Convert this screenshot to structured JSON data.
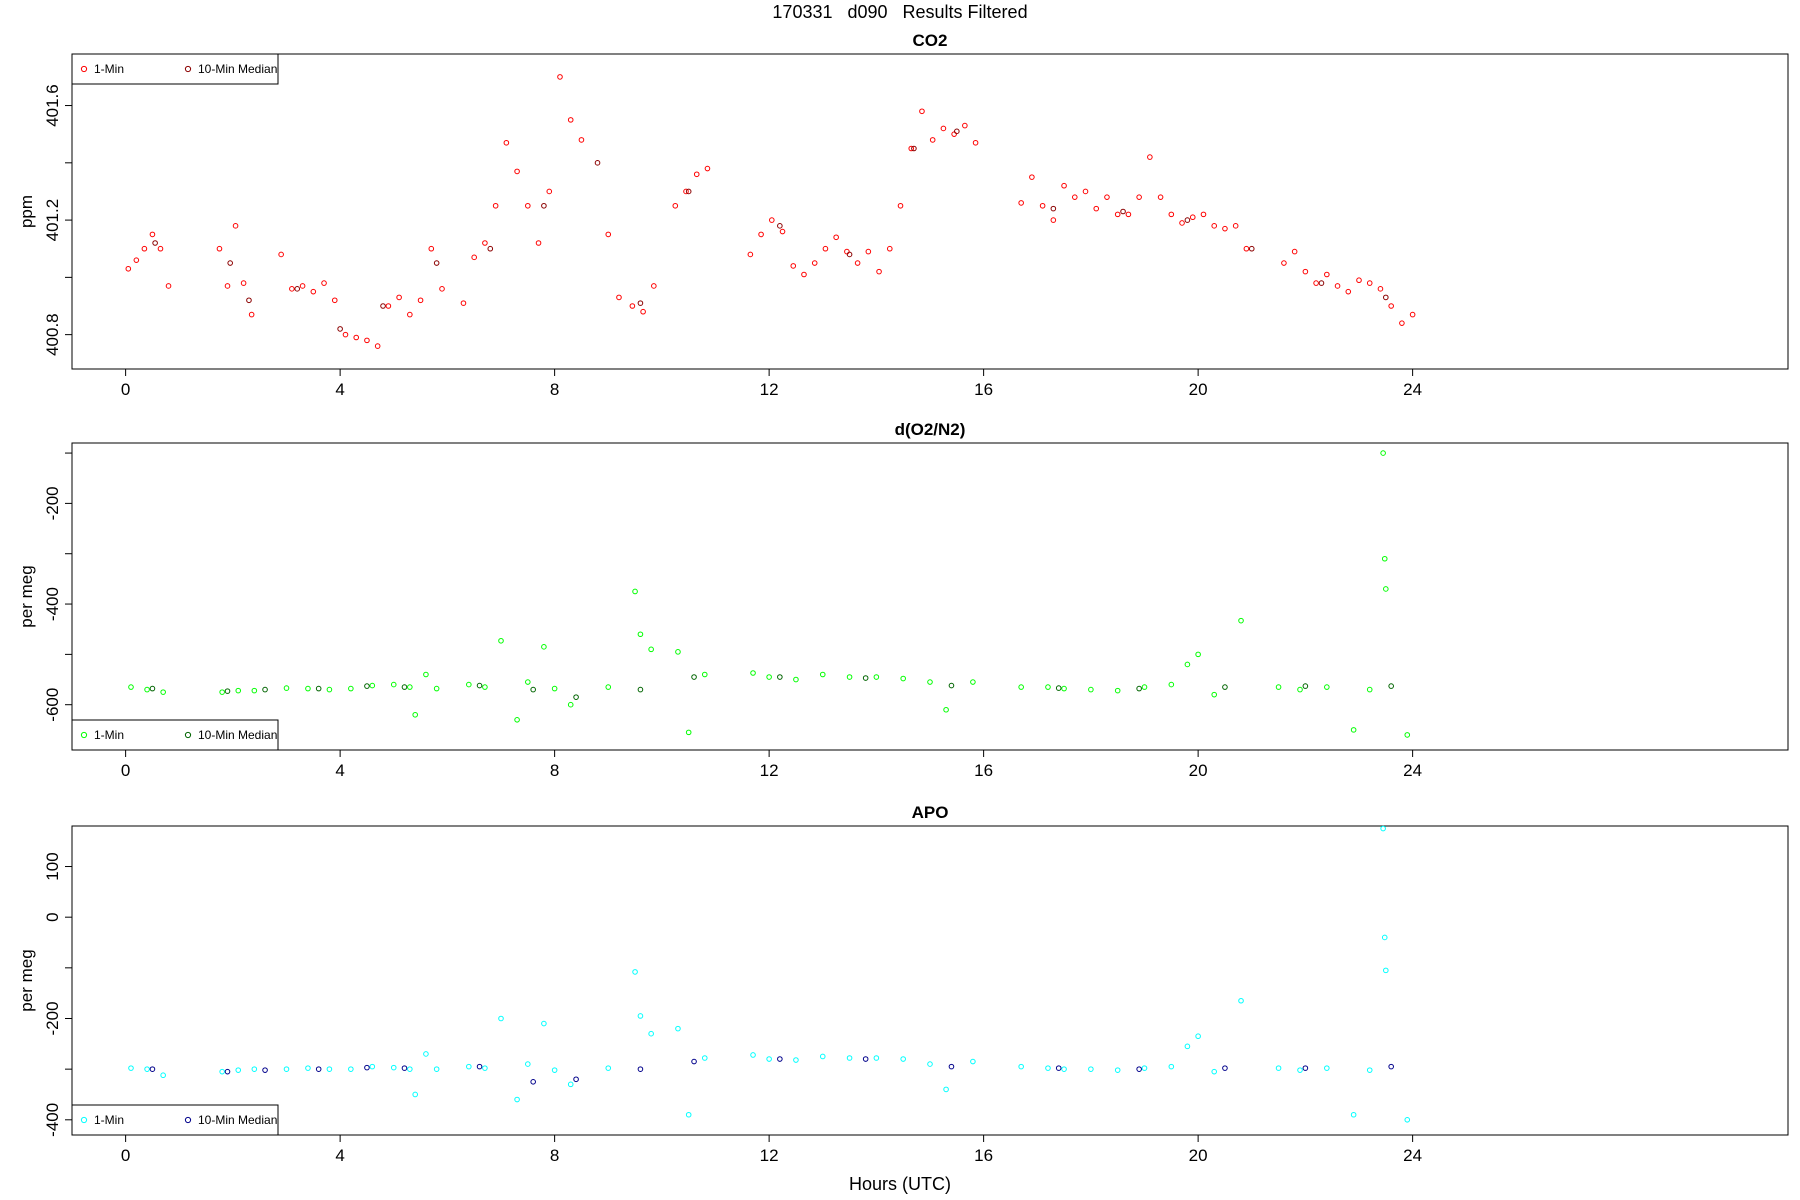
{
  "page_title": "170331   d090   Results Filtered",
  "xlabel": "Hours (UTC)",
  "chart_data": [
    {
      "type": "scatter",
      "title": "CO2",
      "ylabel": "ppm",
      "xlim": [
        -1,
        31
      ],
      "ylim": [
        400.68,
        401.78
      ],
      "xticks": [
        0,
        4,
        8,
        12,
        16,
        20,
        24
      ],
      "yticks": [
        400.8,
        401.2,
        401.6
      ],
      "yminor": [
        400.8,
        401.0,
        401.2,
        401.4,
        401.6
      ],
      "legend_position": "top-left",
      "series": [
        {
          "name": "1-Min",
          "color": "#ff0000",
          "x": [
            0.05,
            0.2,
            0.35,
            0.5,
            0.65,
            0.8,
            1.75,
            1.9,
            2.05,
            2.2,
            2.35,
            2.9,
            3.1,
            3.3,
            3.5,
            3.7,
            3.9,
            4.1,
            4.3,
            4.5,
            4.7,
            4.9,
            5.1,
            5.3,
            5.5,
            5.7,
            5.9,
            6.3,
            6.5,
            6.7,
            6.9,
            7.1,
            7.3,
            7.5,
            7.7,
            7.9,
            8.1,
            8.3,
            8.5,
            9.0,
            9.2,
            9.45,
            9.65,
            9.85,
            10.25,
            10.45,
            10.65,
            10.85,
            11.65,
            11.85,
            12.05,
            12.25,
            12.45,
            12.65,
            12.85,
            13.05,
            13.25,
            13.45,
            13.65,
            13.85,
            14.05,
            14.25,
            14.45,
            14.65,
            14.85,
            15.05,
            15.25,
            15.45,
            15.65,
            15.85,
            16.7,
            16.9,
            17.1,
            17.3,
            17.5,
            17.7,
            17.9,
            18.1,
            18.3,
            18.5,
            18.7,
            18.9,
            19.1,
            19.3,
            19.5,
            19.7,
            19.9,
            20.1,
            20.3,
            20.5,
            20.7,
            20.9,
            21.6,
            21.8,
            22.0,
            22.2,
            22.4,
            22.6,
            22.8,
            23.0,
            23.2,
            23.4,
            23.6,
            23.8,
            24.0
          ],
          "y": [
            401.03,
            401.06,
            401.1,
            401.15,
            401.1,
            400.97,
            401.1,
            400.97,
            401.18,
            400.98,
            400.87,
            401.08,
            400.96,
            400.97,
            400.95,
            400.98,
            400.92,
            400.8,
            400.79,
            400.78,
            400.76,
            400.9,
            400.93,
            400.87,
            400.92,
            401.1,
            400.96,
            400.91,
            401.07,
            401.12,
            401.25,
            401.47,
            401.37,
            401.25,
            401.12,
            401.3,
            401.7,
            401.55,
            401.48,
            401.15,
            400.93,
            400.9,
            400.88,
            400.97,
            401.25,
            401.3,
            401.36,
            401.38,
            401.08,
            401.15,
            401.2,
            401.16,
            401.04,
            401.01,
            401.05,
            401.1,
            401.14,
            401.09,
            401.05,
            401.09,
            401.02,
            401.1,
            401.25,
            401.45,
            401.58,
            401.48,
            401.52,
            401.5,
            401.53,
            401.47,
            401.26,
            401.35,
            401.25,
            401.2,
            401.32,
            401.28,
            401.3,
            401.24,
            401.28,
            401.22,
            401.22,
            401.28,
            401.42,
            401.28,
            401.22,
            401.19,
            401.21,
            401.22,
            401.18,
            401.17,
            401.18,
            401.1,
            401.05,
            401.09,
            401.02,
            400.98,
            401.01,
            400.97,
            400.95,
            400.99,
            400.98,
            400.96,
            400.9,
            400.84,
            400.87
          ]
        },
        {
          "name": "10-Min Median",
          "color": "#8b0000",
          "x": [
            0.55,
            1.95,
            2.3,
            3.2,
            4.0,
            4.8,
            5.8,
            6.8,
            7.8,
            8.8,
            9.6,
            10.5,
            12.2,
            13.5,
            14.7,
            15.5,
            17.3,
            18.6,
            19.8,
            21.0,
            22.3,
            23.5
          ],
          "y": [
            401.12,
            401.05,
            400.92,
            400.96,
            400.82,
            400.9,
            401.05,
            401.1,
            401.25,
            401.4,
            400.91,
            401.3,
            401.18,
            401.08,
            401.45,
            401.51,
            401.24,
            401.23,
            401.2,
            401.1,
            400.98,
            400.93
          ]
        }
      ]
    },
    {
      "type": "scatter",
      "title": "d(O2/N2)",
      "ylabel": "per meg",
      "xlim": [
        -1,
        31
      ],
      "ylim": [
        -690,
        -80
      ],
      "xticks": [
        0,
        4,
        8,
        12,
        16,
        20,
        24
      ],
      "yticks": [
        -600,
        -400,
        -200
      ],
      "yminor": [
        -600,
        -500,
        -400,
        -300,
        -200,
        -100
      ],
      "legend_position": "bottom-left",
      "series": [
        {
          "name": "1-Min",
          "color": "#00ff00",
          "x": [
            0.1,
            0.4,
            0.7,
            1.8,
            2.1,
            2.4,
            3.0,
            3.4,
            3.8,
            4.2,
            4.6,
            5.0,
            5.3,
            5.4,
            5.6,
            5.8,
            6.4,
            6.7,
            7.0,
            7.3,
            7.5,
            7.8,
            8.0,
            8.3,
            9.0,
            9.5,
            9.6,
            9.8,
            10.3,
            10.5,
            10.8,
            11.7,
            12.0,
            12.5,
            13.0,
            13.5,
            14.0,
            14.5,
            15.0,
            15.3,
            15.8,
            16.7,
            17.2,
            17.5,
            18.0,
            18.5,
            19.0,
            19.5,
            19.8,
            20.0,
            20.3,
            20.8,
            21.5,
            21.9,
            22.4,
            22.9,
            23.2,
            23.45,
            23.48,
            23.5,
            23.9
          ],
          "y": [
            -565,
            -570,
            -575,
            -575,
            -572,
            -572,
            -567,
            -568,
            -570,
            -568,
            -562,
            -560,
            -565,
            -620,
            -540,
            -568,
            -560,
            -565,
            -473,
            -630,
            -555,
            -485,
            -568,
            -600,
            -565,
            -375,
            -460,
            -490,
            -495,
            -655,
            -540,
            -537,
            -545,
            -550,
            -540,
            -545,
            -545,
            -548,
            -555,
            -610,
            -555,
            -565,
            -565,
            -568,
            -570,
            -572,
            -565,
            -560,
            -520,
            -500,
            -580,
            -433,
            -565,
            -570,
            -565,
            -650,
            -570,
            -100,
            -310,
            -370,
            -660
          ]
        },
        {
          "name": "10-Min Median",
          "color": "#006400",
          "x": [
            0.5,
            1.9,
            2.6,
            3.6,
            4.5,
            5.2,
            6.6,
            7.6,
            8.4,
            9.6,
            10.6,
            12.2,
            13.8,
            15.4,
            17.4,
            18.9,
            20.5,
            22.0,
            23.6
          ],
          "y": [
            -568,
            -573,
            -570,
            -568,
            -563,
            -565,
            -562,
            -570,
            -585,
            -570,
            -545,
            -545,
            -547,
            -562,
            -567,
            -568,
            -565,
            -563,
            -563
          ]
        }
      ]
    },
    {
      "type": "scatter",
      "title": "APO",
      "ylabel": "per meg",
      "xlim": [
        -1,
        31
      ],
      "ylim": [
        -430,
        180
      ],
      "xticks": [
        0,
        4,
        8,
        12,
        16,
        20,
        24
      ],
      "yticks": [
        -400,
        -200,
        0,
        100
      ],
      "yminor": [
        -400,
        -300,
        -200,
        -100,
        0,
        100
      ],
      "legend_position": "bottom-left",
      "series": [
        {
          "name": "1-Min",
          "color": "#00ffff",
          "x": [
            0.1,
            0.4,
            0.7,
            1.8,
            2.1,
            2.4,
            3.0,
            3.4,
            3.8,
            4.2,
            4.6,
            5.0,
            5.3,
            5.4,
            5.6,
            5.8,
            6.4,
            6.7,
            7.0,
            7.3,
            7.5,
            7.8,
            8.0,
            8.3,
            9.0,
            9.5,
            9.6,
            9.8,
            10.3,
            10.5,
            10.8,
            11.7,
            12.0,
            12.5,
            13.0,
            13.5,
            14.0,
            14.5,
            15.0,
            15.3,
            15.8,
            16.7,
            17.2,
            17.5,
            18.0,
            18.5,
            19.0,
            19.5,
            19.8,
            20.0,
            20.3,
            20.8,
            21.5,
            21.9,
            22.4,
            22.9,
            23.2,
            23.45,
            23.48,
            23.5,
            23.9
          ],
          "y": [
            -298,
            -300,
            -312,
            -305,
            -302,
            -300,
            -300,
            -298,
            -300,
            -300,
            -295,
            -297,
            -300,
            -350,
            -270,
            -300,
            -295,
            -298,
            -200,
            -360,
            -290,
            -210,
            -302,
            -330,
            -298,
            -108,
            -195,
            -230,
            -220,
            -390,
            -278,
            -272,
            -280,
            -282,
            -275,
            -278,
            -278,
            -280,
            -290,
            -340,
            -285,
            -295,
            -298,
            -300,
            -300,
            -302,
            -298,
            -295,
            -255,
            -235,
            -305,
            -165,
            -298,
            -302,
            -298,
            -390,
            -302,
            175,
            -40,
            -105,
            -400
          ]
        },
        {
          "name": "10-Min Median",
          "color": "#00008b",
          "x": [
            0.5,
            1.9,
            2.6,
            3.6,
            4.5,
            5.2,
            6.6,
            7.6,
            8.4,
            9.6,
            10.6,
            12.2,
            13.8,
            15.4,
            17.4,
            18.9,
            20.5,
            22.0,
            23.6
          ],
          "y": [
            -300,
            -305,
            -302,
            -300,
            -297,
            -298,
            -295,
            -325,
            -320,
            -300,
            -285,
            -280,
            -280,
            -295,
            -298,
            -300,
            -298,
            -298,
            -295
          ]
        }
      ]
    }
  ]
}
